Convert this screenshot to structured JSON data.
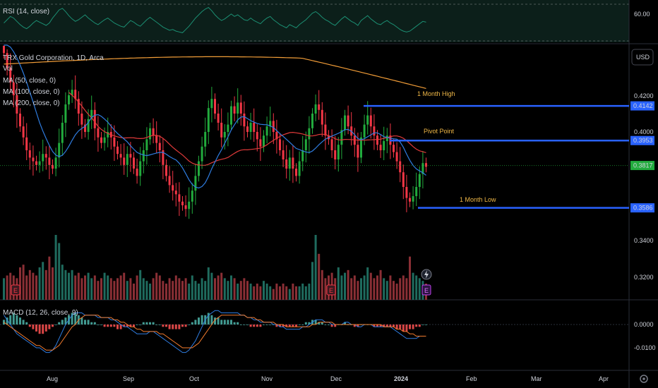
{
  "chart_data": {
    "type": "candlestick",
    "symbol_line": "TRX Gold Corporation, 1D, Arca",
    "indicators": [
      "Vol",
      "MA (50, close, 0)",
      "MA (100, close, 0)",
      "MA (200, close, 0)"
    ],
    "currency": "USD",
    "price_axis": {
      "ticks": [
        "0.4200",
        "0.4000",
        "0.3400",
        "0.3200"
      ],
      "min": 0.31,
      "max": 0.445
    },
    "x_axis": {
      "ticks": [
        "Aug",
        "Sep",
        "Oct",
        "Nov",
        "Dec",
        "2024",
        "Feb",
        "Mar",
        "Apr"
      ]
    },
    "price_badges": [
      {
        "label": "0.4142",
        "value": 0.4142,
        "color": "#2962ff"
      },
      {
        "label": "0.3953",
        "value": 0.3953,
        "color": "#2962ff"
      },
      {
        "label": "0.3817",
        "value": 0.3817,
        "color": "#22ab3d"
      },
      {
        "label": "0.3586",
        "value": 0.3586,
        "color": "#2962ff"
      }
    ],
    "levels": [
      {
        "name": "1 Month High",
        "value": 0.4142
      },
      {
        "name": "Pivot Point",
        "value": 0.3953
      },
      {
        "name": "1 Month Low",
        "value": 0.3586
      }
    ],
    "rsi": {
      "label": "RSI (14, close)",
      "tick": "60.00"
    },
    "macd": {
      "label": "MACD (12, 26, close, 9)",
      "ticks": [
        "0.0000",
        "-0.0100"
      ]
    },
    "earnings_markers": [
      "E",
      "E",
      "E"
    ],
    "closes": [
      0.443,
      0.435,
      0.427,
      0.42,
      0.41,
      0.403,
      0.397,
      0.39,
      0.386,
      0.384,
      0.382,
      0.384,
      0.388,
      0.386,
      0.382,
      0.38,
      0.386,
      0.394,
      0.405,
      0.415,
      0.42,
      0.423,
      0.418,
      0.41,
      0.404,
      0.4,
      0.407,
      0.412,
      0.402,
      0.397,
      0.394,
      0.397,
      0.4,
      0.397,
      0.392,
      0.388,
      0.386,
      0.382,
      0.388,
      0.386,
      0.38,
      0.376,
      0.384,
      0.39,
      0.396,
      0.402,
      0.398,
      0.394,
      0.39,
      0.382,
      0.376,
      0.371,
      0.368,
      0.366,
      0.362,
      0.36,
      0.358,
      0.362,
      0.368,
      0.376,
      0.384,
      0.392,
      0.4,
      0.413,
      0.418,
      0.41,
      0.405,
      0.397,
      0.4,
      0.404,
      0.414,
      0.41,
      0.416,
      0.41,
      0.403,
      0.4,
      0.405,
      0.4,
      0.396,
      0.392,
      0.398,
      0.403,
      0.406,
      0.4,
      0.396,
      0.39,
      0.385,
      0.38,
      0.386,
      0.38,
      0.376,
      0.384,
      0.39,
      0.396,
      0.402,
      0.41,
      0.415,
      0.412,
      0.404,
      0.398,
      0.396,
      0.39,
      0.385,
      0.393,
      0.401,
      0.409,
      0.403,
      0.398,
      0.393,
      0.386,
      0.397,
      0.404,
      0.409,
      0.403,
      0.398,
      0.393,
      0.39,
      0.395,
      0.398,
      0.393,
      0.389,
      0.384,
      0.378,
      0.37,
      0.364,
      0.362,
      0.365,
      0.37,
      0.377,
      0.383,
      0.381
    ],
    "volumes": [
      8,
      9,
      10,
      9,
      8,
      12,
      13,
      9,
      11,
      10,
      9,
      12,
      14,
      11,
      16,
      12,
      24,
      21,
      13,
      11,
      10,
      11,
      9,
      10,
      8,
      9,
      10,
      8,
      9,
      7,
      8,
      10,
      9,
      8,
      7,
      8,
      9,
      10,
      7,
      8,
      6,
      9,
      11,
      8,
      7,
      6,
      8,
      10,
      9,
      7,
      6,
      8,
      7,
      9,
      8,
      7,
      8,
      6,
      9,
      7,
      6,
      8,
      7,
      12,
      10,
      8,
      9,
      10,
      8,
      7,
      9,
      8,
      6,
      7,
      8,
      7,
      6,
      5,
      6,
      5,
      7,
      6,
      5,
      4,
      6,
      5,
      6,
      5,
      4,
      6,
      5,
      5,
      6,
      5,
      6,
      14,
      24,
      17,
      11,
      8,
      9,
      10,
      8,
      12,
      9,
      10,
      11,
      8,
      9,
      7,
      8,
      9,
      12,
      10,
      8,
      9,
      11,
      8,
      7,
      9,
      7,
      6,
      8,
      9,
      8,
      16,
      10,
      9,
      8,
      7,
      6
    ],
    "rsi_values": [
      52,
      56,
      60,
      58,
      54,
      50,
      47,
      45,
      48,
      52,
      55,
      53,
      51,
      49,
      52,
      58,
      63,
      68,
      70,
      66,
      61,
      57,
      54,
      56,
      59,
      62,
      58,
      55,
      52,
      50,
      53,
      56,
      58,
      55,
      52,
      50,
      48,
      47,
      51,
      55,
      53,
      50,
      48,
      52,
      56,
      59,
      56,
      53,
      50,
      47,
      45,
      43,
      44,
      42,
      41,
      40,
      44,
      48,
      53,
      58,
      62,
      66,
      69,
      71,
      67,
      62,
      58,
      55,
      57,
      60,
      63,
      60,
      62,
      59,
      56,
      55,
      58,
      55,
      53,
      51,
      55,
      58,
      60,
      56,
      53,
      50,
      48,
      46,
      50,
      48,
      46,
      50,
      53,
      56,
      60,
      64,
      66,
      63,
      59,
      56,
      54,
      51,
      49,
      53,
      57,
      60,
      57,
      54,
      52,
      49,
      55,
      58,
      61,
      57,
      54,
      51,
      50,
      53,
      55,
      52,
      50,
      47,
      44,
      42,
      41,
      42,
      45,
      48,
      51,
      54,
      53
    ],
    "macd_hist": [
      0.002,
      0.003,
      0.004,
      0.005,
      0.004,
      0.003,
      0.002,
      0.001,
      -0.001,
      -0.002,
      -0.003,
      -0.004,
      -0.004,
      -0.003,
      -0.002,
      -0.001,
      0.0,
      0.001,
      0.002,
      0.003,
      0.004,
      0.005,
      0.005,
      0.004,
      0.003,
      0.002,
      0.002,
      0.001,
      0.001,
      0.0,
      0.0,
      -0.001,
      -0.001,
      -0.001,
      -0.001,
      -0.002,
      -0.002,
      -0.001,
      -0.001,
      -0.001,
      -0.001,
      0.0,
      0.0,
      0.001,
      0.001,
      0.001,
      0.001,
      0.0,
      0.0,
      -0.001,
      -0.001,
      -0.002,
      -0.002,
      -0.002,
      -0.002,
      -0.001,
      -0.001,
      0.0,
      0.001,
      0.002,
      0.003,
      0.004,
      0.004,
      0.005,
      0.004,
      0.003,
      0.003,
      0.002,
      0.002,
      0.002,
      0.002,
      0.001,
      0.001,
      0.0,
      0.0,
      0.0,
      -0.001,
      -0.001,
      -0.001,
      -0.001,
      0.0,
      0.0,
      0.0,
      0.0,
      -0.001,
      -0.001,
      -0.001,
      -0.001,
      -0.001,
      -0.001,
      -0.001,
      0.0,
      0.0,
      0.001,
      0.001,
      0.002,
      0.002,
      0.001,
      0.001,
      0.0,
      0.0,
      -0.001,
      -0.001,
      0.0,
      0.0,
      0.001,
      0.0,
      0.0,
      -0.001,
      -0.001,
      0.0,
      0.0,
      0.0,
      0.0,
      -0.001,
      -0.001,
      -0.001,
      -0.001,
      -0.001,
      -0.001,
      -0.001,
      -0.002,
      -0.002,
      -0.003,
      -0.003,
      -0.002,
      -0.002,
      -0.001,
      -0.001,
      0.0,
      0.0
    ],
    "macd_line": [
      0.004,
      0.002,
      0.0,
      -0.002,
      -0.004,
      -0.005,
      -0.006,
      -0.007,
      -0.008,
      -0.009,
      -0.01,
      -0.01,
      -0.011,
      -0.012,
      -0.012,
      -0.011,
      -0.009,
      -0.006,
      -0.003,
      0.0,
      0.002,
      0.004,
      0.005,
      0.005,
      0.005,
      0.004,
      0.004,
      0.004,
      0.004,
      0.003,
      0.003,
      0.003,
      0.003,
      0.002,
      0.002,
      0.001,
      0.0,
      -0.001,
      -0.001,
      -0.002,
      -0.003,
      -0.004,
      -0.004,
      -0.004,
      -0.004,
      -0.003,
      -0.003,
      -0.004,
      -0.005,
      -0.006,
      -0.007,
      -0.008,
      -0.009,
      -0.01,
      -0.011,
      -0.012,
      -0.012,
      -0.011,
      -0.009,
      -0.007,
      -0.004,
      -0.001,
      0.002,
      0.004,
      0.005,
      0.006,
      0.006,
      0.005,
      0.005,
      0.005,
      0.005,
      0.005,
      0.005,
      0.004,
      0.004,
      0.003,
      0.003,
      0.002,
      0.002,
      0.001,
      0.001,
      0.001,
      0.001,
      0.0,
      0.0,
      -0.001,
      -0.001,
      -0.002,
      -0.002,
      -0.002,
      -0.002,
      -0.002,
      -0.001,
      -0.001,
      0.0,
      0.001,
      0.002,
      0.002,
      0.002,
      0.001,
      0.001,
      0.0,
      0.0,
      0.0,
      0.0,
      0.001,
      0.001,
      0.0,
      0.0,
      -0.001,
      -0.001,
      0.0,
      0.0,
      0.0,
      -0.001,
      -0.001,
      -0.001,
      -0.001,
      -0.001,
      -0.001,
      -0.002,
      -0.003,
      -0.004,
      -0.005,
      -0.006,
      -0.006,
      -0.006,
      -0.006,
      -0.005,
      -0.005,
      -0.005
    ],
    "signal_line": [
      0.001,
      0.0,
      -0.001,
      -0.002,
      -0.003,
      -0.004,
      -0.005,
      -0.006,
      -0.007,
      -0.008,
      -0.009,
      -0.009,
      -0.01,
      -0.011,
      -0.011,
      -0.011,
      -0.01,
      -0.009,
      -0.007,
      -0.005,
      -0.003,
      -0.001,
      0.0,
      0.002,
      0.003,
      0.004,
      0.004,
      0.004,
      0.004,
      0.004,
      0.003,
      0.003,
      0.003,
      0.003,
      0.002,
      0.002,
      0.001,
      0.001,
      0.0,
      -0.001,
      -0.001,
      -0.002,
      -0.002,
      -0.003,
      -0.003,
      -0.003,
      -0.003,
      -0.003,
      -0.004,
      -0.004,
      -0.005,
      -0.006,
      -0.007,
      -0.008,
      -0.009,
      -0.01,
      -0.01,
      -0.01,
      -0.01,
      -0.009,
      -0.008,
      -0.006,
      -0.004,
      -0.002,
      0.0,
      0.002,
      0.003,
      0.004,
      0.004,
      0.004,
      0.004,
      0.004,
      0.004,
      0.004,
      0.004,
      0.003,
      0.003,
      0.003,
      0.002,
      0.002,
      0.001,
      0.001,
      0.001,
      0.001,
      0.0,
      0.0,
      0.0,
      -0.001,
      -0.001,
      -0.001,
      -0.001,
      -0.001,
      -0.001,
      -0.001,
      -0.001,
      0.0,
      0.0,
      0.001,
      0.001,
      0.001,
      0.001,
      0.001,
      0.0,
      0.0,
      0.0,
      0.0,
      0.0,
      0.0,
      0.0,
      0.0,
      0.0,
      0.0,
      0.0,
      0.0,
      0.0,
      0.0,
      0.0,
      -0.001,
      -0.001,
      -0.001,
      -0.001,
      -0.002,
      -0.002,
      -0.003,
      -0.003,
      -0.004,
      -0.004,
      -0.005,
      -0.005,
      -0.005,
      -0.005
    ],
    "colors": {
      "up": "#22ab3d",
      "down": "#f23645",
      "vol_up": "#1f6b5e",
      "vol_down": "#8a2f35",
      "ma50": "#2f7de1",
      "ma100": "#e03a3a",
      "ma200": "#f29d38",
      "level_line": "#2962ff",
      "level_text": "#f0b847",
      "rsi_line": "#1c8f73",
      "macd_line": "#2f7de1",
      "signal_line": "#f27b2e",
      "hist_pos": "#4db6ac",
      "hist_neg": "#ff5252"
    }
  }
}
